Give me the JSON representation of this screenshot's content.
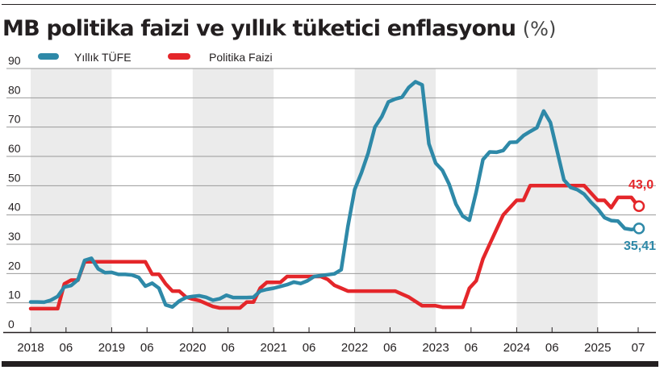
{
  "header": {
    "title": "MB politika faizi ve yıllık tüketici enflasyonu",
    "unit": "(%)"
  },
  "legend": [
    {
      "label": "Yıllık TÜFE",
      "color": "#2e89a8"
    },
    {
      "label": "Politika Faizi",
      "color": "#e4262a"
    }
  ],
  "end_labels": {
    "policy": "43,0",
    "cpi": "35,41"
  },
  "colors": {
    "cpi": "#2e89a8",
    "policy": "#e4262a",
    "band": "#ebebeb",
    "grid": "#9a9a9a",
    "axis": "#231f20"
  },
  "chart_data": {
    "type": "line",
    "title": "MB politika faizi ve yıllık tüketici enflasyonu (%)",
    "xlabel": "",
    "ylabel": "%",
    "ylim": [
      0,
      90
    ],
    "yticks": [
      0,
      10,
      20,
      30,
      40,
      50,
      60,
      70,
      80,
      90
    ],
    "x_tick_labels": [
      "2018",
      "06",
      "2019",
      "06",
      "2020",
      "06",
      "2021",
      "06",
      "2022",
      "06",
      "2023",
      "06",
      "2024",
      "06",
      "2025",
      "07"
    ],
    "grid": true,
    "legend_position": "top-left",
    "shaded_years": [
      "2018",
      "2020",
      "2022",
      "2024"
    ],
    "x_start": "2018-01",
    "x_end": "2025-07",
    "series": [
      {
        "name": "Yıllık TÜFE",
        "color": "#2e89a8",
        "last_value_label": "35,41",
        "values": [
          10.3,
          10.3,
          10.2,
          10.9,
          12.2,
          15.4,
          15.9,
          17.9,
          24.5,
          25.2,
          21.6,
          20.3,
          20.4,
          19.7,
          19.7,
          19.5,
          18.7,
          15.7,
          16.7,
          15.0,
          9.3,
          8.6,
          10.6,
          11.8,
          12.2,
          12.4,
          11.9,
          10.9,
          11.4,
          12.6,
          11.8,
          11.8,
          11.8,
          11.9,
          14.0,
          14.6,
          15.0,
          15.6,
          16.2,
          17.1,
          16.6,
          17.5,
          19.0,
          19.3,
          19.6,
          19.9,
          21.3,
          36.1,
          48.7,
          54.4,
          61.1,
          70.0,
          73.5,
          78.6,
          79.6,
          80.2,
          83.5,
          85.5,
          84.4,
          64.3,
          57.7,
          55.2,
          50.5,
          43.7,
          39.6,
          38.2,
          47.8,
          58.9,
          61.5,
          61.4,
          62.0,
          64.8,
          64.9,
          67.1,
          68.5,
          69.8,
          75.5,
          71.6,
          61.8,
          52.0,
          49.4,
          48.6,
          47.1,
          44.4,
          42.1,
          39.1,
          38.1,
          37.9,
          35.4,
          35.0,
          35.41
        ]
      },
      {
        "name": "Politika Faizi",
        "color": "#e4262a",
        "last_value_label": "43,0",
        "values": [
          8.0,
          8.0,
          8.0,
          8.0,
          8.0,
          16.5,
          17.75,
          17.75,
          24.0,
          24.0,
          24.0,
          24.0,
          24.0,
          24.0,
          24.0,
          24.0,
          24.0,
          24.0,
          19.75,
          19.75,
          16.5,
          14.0,
          14.0,
          12.0,
          11.25,
          10.75,
          9.75,
          8.75,
          8.25,
          8.25,
          8.25,
          8.25,
          10.25,
          10.25,
          15.0,
          17.0,
          17.0,
          17.0,
          19.0,
          19.0,
          19.0,
          19.0,
          19.0,
          19.0,
          18.0,
          16.0,
          15.0,
          14.0,
          14.0,
          14.0,
          14.0,
          14.0,
          14.0,
          14.0,
          14.0,
          13.0,
          12.0,
          10.5,
          9.0,
          9.0,
          9.0,
          8.5,
          8.5,
          8.5,
          8.5,
          15.0,
          17.5,
          25.0,
          30.0,
          35.0,
          40.0,
          42.5,
          45.0,
          45.0,
          50.0,
          50.0,
          50.0,
          50.0,
          50.0,
          50.0,
          50.0,
          50.0,
          50.0,
          47.5,
          45.0,
          45.0,
          42.5,
          46.0,
          46.0,
          46.0,
          43.0
        ]
      }
    ]
  }
}
